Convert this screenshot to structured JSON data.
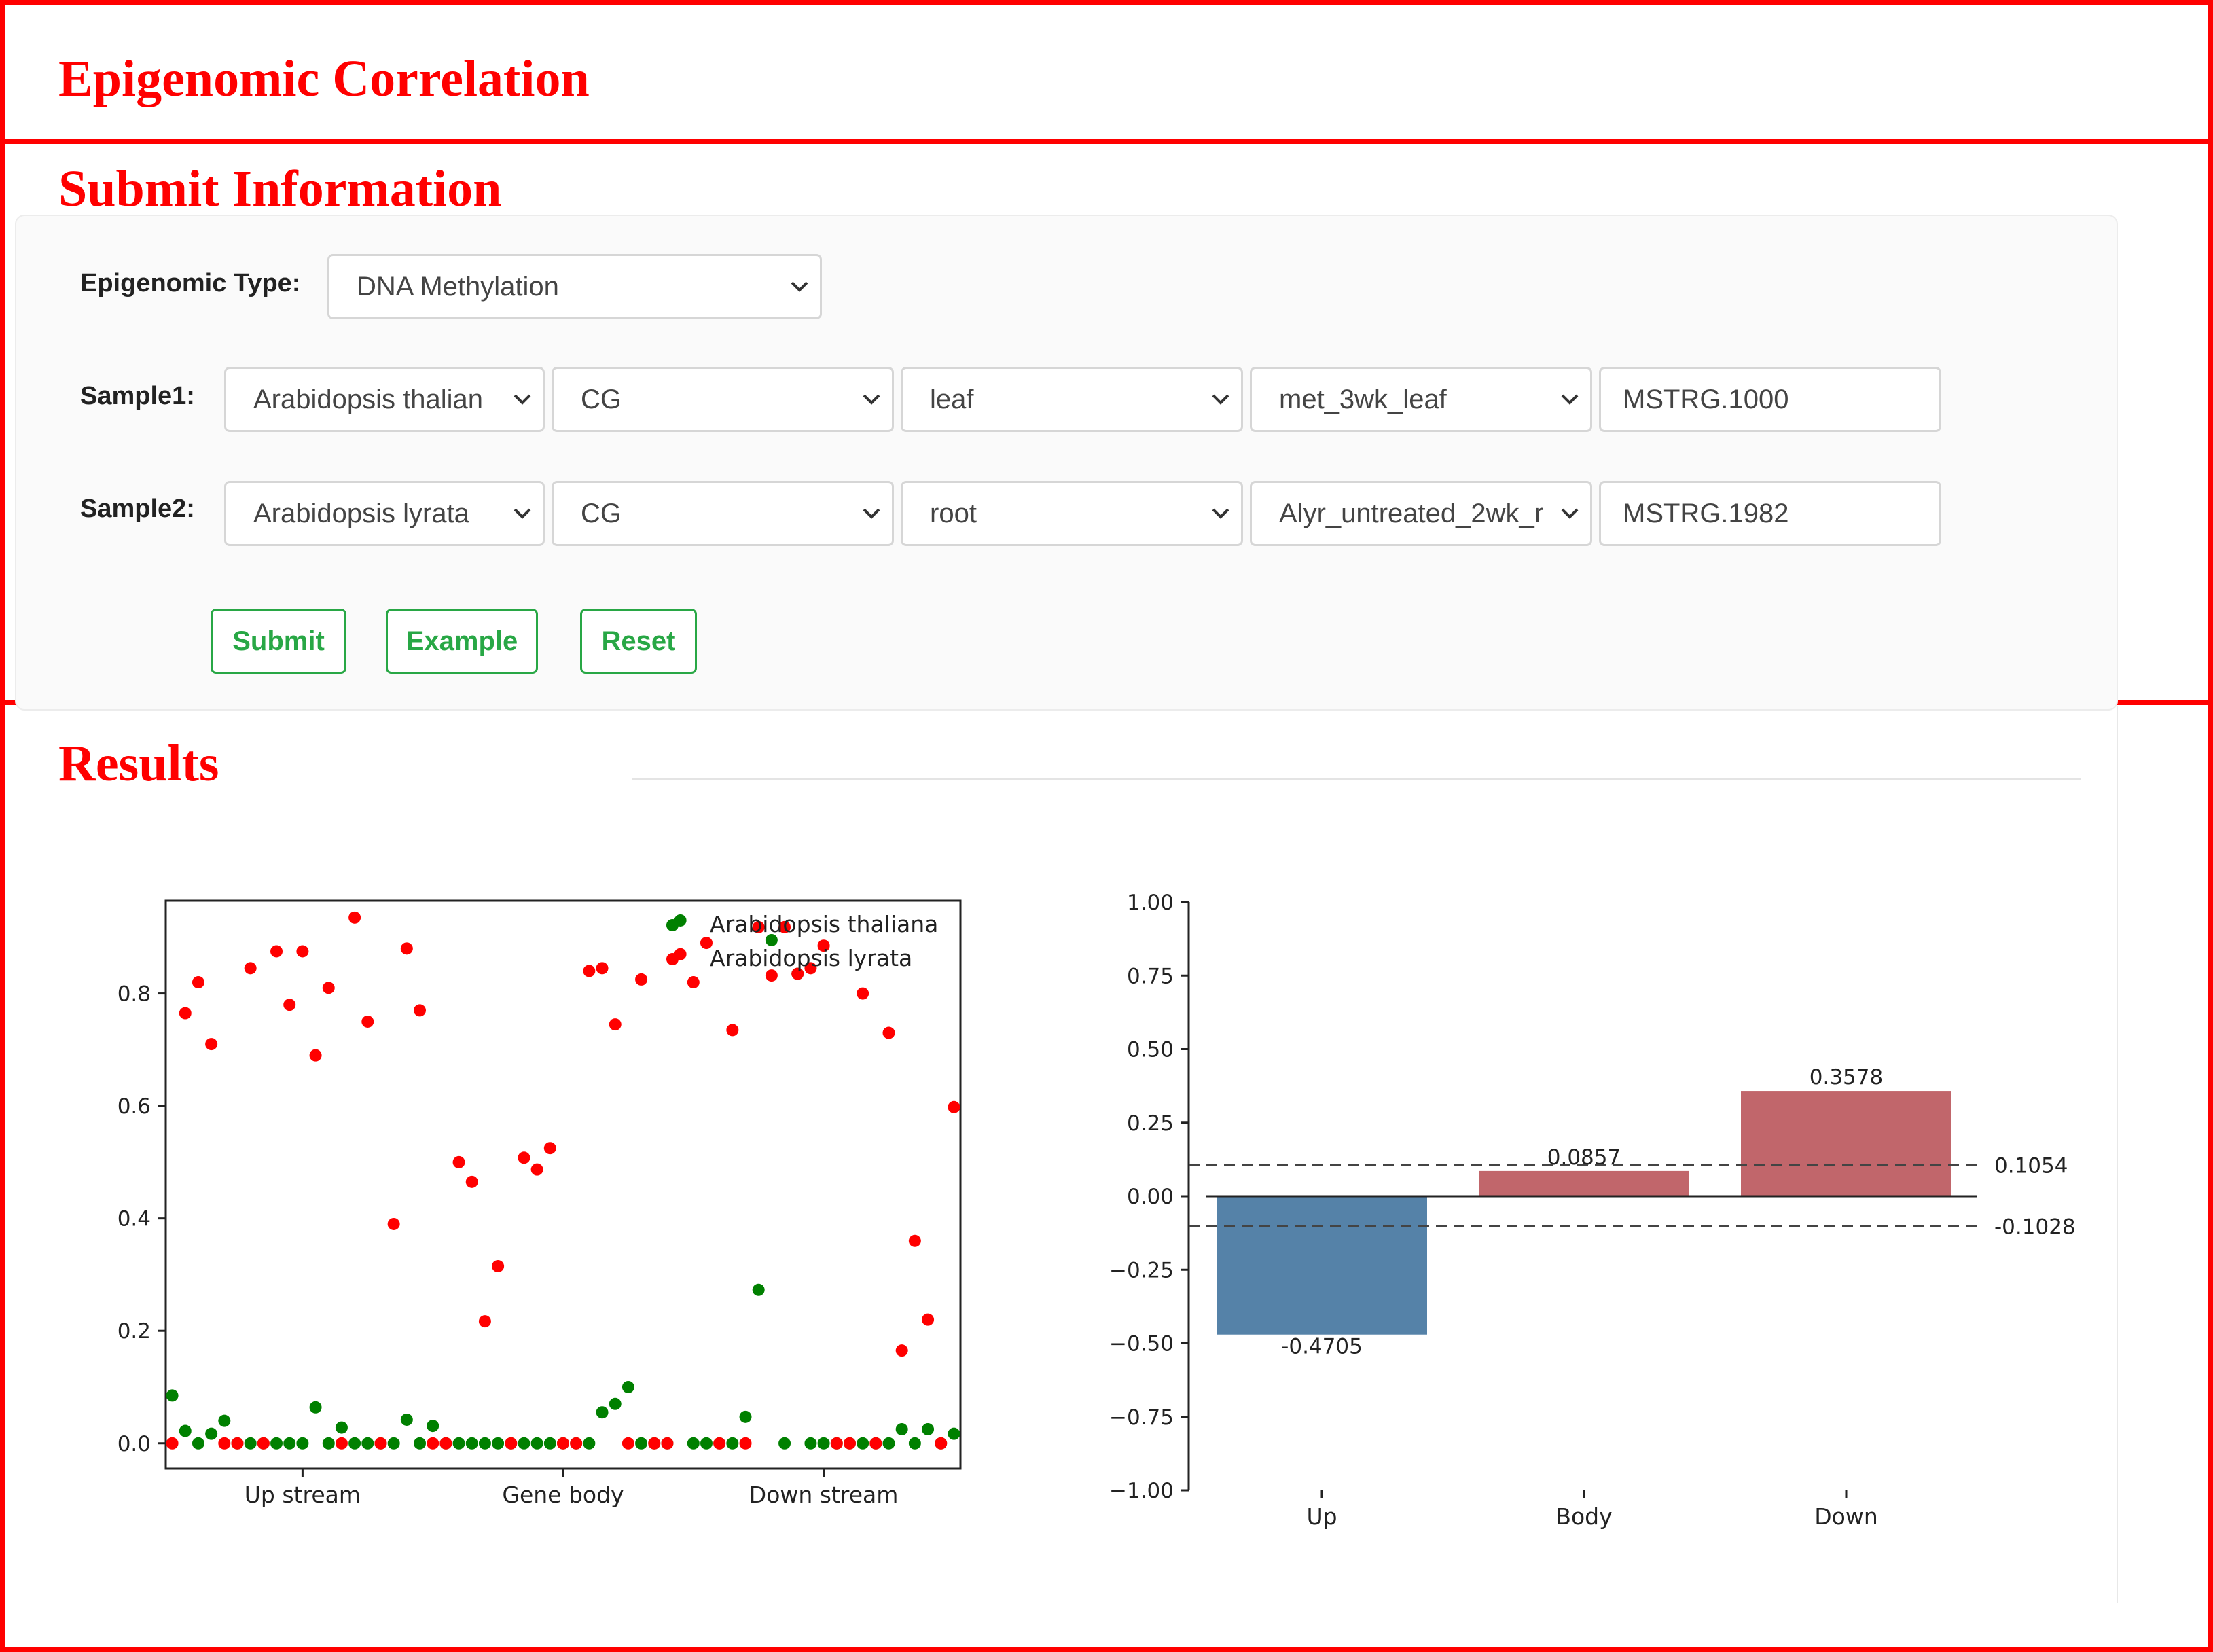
{
  "page": {
    "title": "Epigenomic Correlation"
  },
  "submit": {
    "section_title": "Submit Information",
    "epigenomic_type_label": "Epigenomic Type:",
    "epigenomic_type_value": "DNA Methylation",
    "sample1": {
      "label": "Sample1:",
      "species": "Arabidopsis thalian",
      "context": "CG",
      "tissue": "leaf",
      "dataset": "met_3wk_leaf",
      "gene_id": "MSTRG.1000"
    },
    "sample2": {
      "label": "Sample2:",
      "species": "Arabidopsis lyrata",
      "context": "CG",
      "tissue": "root",
      "dataset": "Alyr_untreated_2wk_r",
      "gene_id": "MSTRG.1982"
    },
    "buttons": {
      "submit": "Submit",
      "example": "Example",
      "reset": "Reset"
    },
    "accent_color": "#28a745"
  },
  "results": {
    "section_title": "Results"
  },
  "icons": {
    "dropdown": "chevron-down-icon"
  },
  "chart_data": [
    {
      "type": "scatter",
      "title": "",
      "xlabel": "",
      "ylabel": "",
      "xlim": [
        -0.5,
        60.5
      ],
      "ylim": [
        -0.045,
        0.965
      ],
      "x_ticks": [
        {
          "x": 10,
          "label": "Up stream"
        },
        {
          "x": 30,
          "label": "Gene body"
        },
        {
          "x": 50,
          "label": "Down stream"
        }
      ],
      "y_ticks": [
        0.0,
        0.2,
        0.4,
        0.6,
        0.8
      ],
      "y_tick_labels": [
        "0.0",
        "0.2",
        "0.4",
        "0.6",
        "0.8"
      ],
      "legend_position": "top-right",
      "series": [
        {
          "name": "Arabidopsis thaliana",
          "color": "#008000",
          "points": [
            [
              0,
              0.085
            ],
            [
              1,
              0.022
            ],
            [
              2,
              0.0
            ],
            [
              3,
              0.017
            ],
            [
              4,
              0.04
            ],
            [
              5,
              0.0
            ],
            [
              6,
              0.0
            ],
            [
              7,
              0.0
            ],
            [
              8,
              0.0
            ],
            [
              9,
              0.0
            ],
            [
              10,
              0.0
            ],
            [
              11,
              0.064
            ],
            [
              12,
              0.0
            ],
            [
              13,
              0.028
            ],
            [
              14,
              0.0
            ],
            [
              15,
              0.0
            ],
            [
              16,
              0.0
            ],
            [
              17,
              0.0
            ],
            [
              18,
              0.042
            ],
            [
              19,
              0.0
            ],
            [
              20,
              0.031
            ],
            [
              21,
              0.0
            ],
            [
              22,
              0.0
            ],
            [
              23,
              0.0
            ],
            [
              24,
              0.0
            ],
            [
              25,
              0.0
            ],
            [
              26,
              0.0
            ],
            [
              27,
              0.0
            ],
            [
              28,
              0.0
            ],
            [
              29,
              0.0
            ],
            [
              30,
              0.0
            ],
            [
              31,
              0.0
            ],
            [
              32,
              0.0
            ],
            [
              33,
              0.055
            ],
            [
              34,
              0.07
            ],
            [
              35,
              0.1
            ],
            [
              36,
              0.0
            ],
            [
              37,
              0.0
            ],
            [
              38,
              0.0
            ],
            [
              39,
              0.93
            ],
            [
              40,
              0.0
            ],
            [
              41,
              0.0
            ],
            [
              42,
              0.0
            ],
            [
              43,
              0.0
            ],
            [
              44,
              0.047
            ],
            [
              45,
              0.273
            ],
            [
              46,
              0.895
            ],
            [
              47,
              0.0
            ],
            [
              48,
              0.835
            ],
            [
              49,
              0.0
            ],
            [
              50,
              0.0
            ],
            [
              51,
              0.0
            ],
            [
              52,
              0.0
            ],
            [
              53,
              0.0
            ],
            [
              54,
              0.0
            ],
            [
              55,
              0.0
            ],
            [
              56,
              0.025
            ],
            [
              57,
              0.0
            ],
            [
              58,
              0.025
            ],
            [
              59,
              0.0
            ],
            [
              60,
              0.017
            ]
          ]
        },
        {
          "name": "Arabidopsis lyrata",
          "color": "#ff0000",
          "points": [
            [
              0,
              0.0
            ],
            [
              1,
              0.765
            ],
            [
              2,
              0.82
            ],
            [
              3,
              0.71
            ],
            [
              4,
              0.0
            ],
            [
              5,
              0.0
            ],
            [
              6,
              0.845
            ],
            [
              7,
              0.0
            ],
            [
              8,
              0.875
            ],
            [
              9,
              0.78
            ],
            [
              10,
              0.875
            ],
            [
              11,
              0.69
            ],
            [
              12,
              0.81
            ],
            [
              13,
              0.0
            ],
            [
              14,
              0.935
            ],
            [
              15,
              0.75
            ],
            [
              16,
              0.0
            ],
            [
              17,
              0.39
            ],
            [
              18,
              0.88
            ],
            [
              19,
              0.77
            ],
            [
              20,
              0.0
            ],
            [
              21,
              0.0
            ],
            [
              22,
              0.5
            ],
            [
              23,
              0.465
            ],
            [
              24,
              0.217
            ],
            [
              25,
              0.315
            ],
            [
              26,
              0.0
            ],
            [
              27,
              0.508
            ],
            [
              28,
              0.487
            ],
            [
              29,
              0.525
            ],
            [
              30,
              0.0
            ],
            [
              31,
              0.0
            ],
            [
              32,
              0.84
            ],
            [
              33,
              0.845
            ],
            [
              34,
              0.745
            ],
            [
              35,
              0.0
            ],
            [
              36,
              0.825
            ],
            [
              37,
              0.0
            ],
            [
              38,
              0.0
            ],
            [
              39,
              0.87
            ],
            [
              40,
              0.82
            ],
            [
              41,
              0.89
            ],
            [
              42,
              0.0
            ],
            [
              43,
              0.735
            ],
            [
              44,
              0.0
            ],
            [
              45,
              0.918
            ],
            [
              46,
              0.832
            ],
            [
              47,
              0.918
            ],
            [
              48,
              0.835
            ],
            [
              49,
              0.845
            ],
            [
              50,
              0.885
            ],
            [
              51,
              0.0
            ],
            [
              52,
              0.0
            ],
            [
              53,
              0.8
            ],
            [
              54,
              0.0
            ],
            [
              55,
              0.73
            ],
            [
              56,
              0.165
            ],
            [
              57,
              0.36
            ],
            [
              58,
              0.22
            ],
            [
              59,
              0.0
            ],
            [
              60,
              0.598
            ]
          ]
        }
      ]
    },
    {
      "type": "bar",
      "title": "",
      "xlabel": "",
      "ylabel": "",
      "categories": [
        "Up",
        "Body",
        "Down"
      ],
      "values": [
        -0.4705,
        0.0857,
        0.3578
      ],
      "value_labels": [
        "-0.4705",
        "0.0857",
        "0.3578"
      ],
      "colors": [
        "#5582a8",
        "#c1666b",
        "#c1666b"
      ],
      "ylim": [
        -1.0,
        1.0
      ],
      "y_ticks": [
        1.0,
        0.75,
        0.5,
        0.25,
        0.0,
        -0.25,
        -0.5,
        -0.75,
        -1.0
      ],
      "y_tick_labels": [
        "1.00",
        "0.75",
        "0.50",
        "0.25",
        "0.00",
        "−0.25",
        "−0.50",
        "−0.75",
        "−1.00"
      ],
      "zero_line": true,
      "thresholds": [
        {
          "value": 0.1054,
          "label": "0.1054"
        },
        {
          "value": -0.1028,
          "label": "-0.1028"
        }
      ]
    }
  ]
}
